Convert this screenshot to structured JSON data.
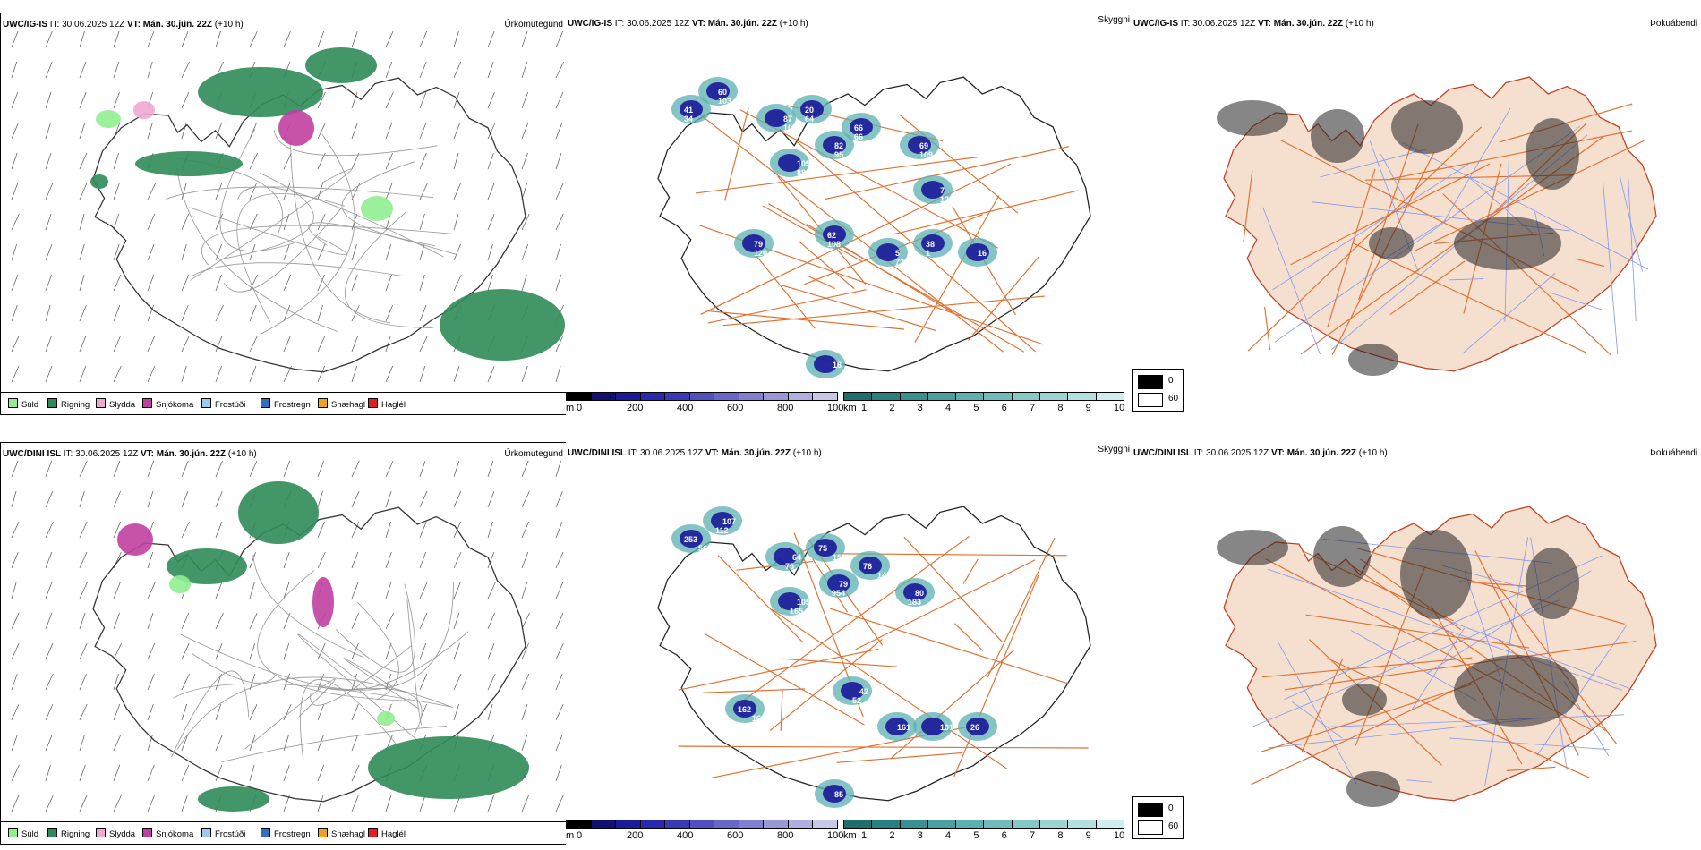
{
  "rows": [
    {
      "model": "UWC/IG-IS",
      "it_label": "IT:",
      "it_value": "30.06.2025 12Z",
      "vt_label": "VT:",
      "vt_value": "Mán. 30.jún. 22Z",
      "lead": "(+10 h)",
      "panels": [
        "Úrkomutegund",
        "Skyggni",
        "Þokuábendi"
      ]
    },
    {
      "model": "UWC/DINI ISL",
      "it_label": "IT:",
      "it_value": "30.06.2025 12Z",
      "vt_label": "VT:",
      "vt_value": "Mán. 30.jún. 22Z",
      "lead": "(+10 h)",
      "panels": [
        "Úrkomutegund",
        "Skyggni",
        "Þokuábendi"
      ]
    }
  ],
  "precip_legend": [
    {
      "label": "Súld",
      "color": "#90ee90"
    },
    {
      "label": "Rigning",
      "color": "#2e8b57"
    },
    {
      "label": "Slydda",
      "color": "#f0a8d0"
    },
    {
      "label": "Snjókoma",
      "color": "#c040a0"
    },
    {
      "label": "Frostúði",
      "color": "#9ccaf0"
    },
    {
      "label": "Frostregn",
      "color": "#3070c0"
    },
    {
      "label": "Snæhagl",
      "color": "#f0a020"
    },
    {
      "label": "Haglél",
      "color": "#e02020"
    }
  ],
  "visibility_legend_m": {
    "unit": "m",
    "ticks": [
      "0",
      "200",
      "400",
      "600",
      "800",
      "1000"
    ],
    "colors": [
      "#000000",
      "#101070",
      "#1a1a9a",
      "#2828b0",
      "#3a3ab8",
      "#5050c0",
      "#6868c8",
      "#8080d0",
      "#9898d8",
      "#b0b0e0",
      "#c8c8e8"
    ]
  },
  "visibility_legend_km": {
    "unit": "km",
    "ticks": [
      "1",
      "2",
      "3",
      "4",
      "5",
      "6",
      "7",
      "8",
      "9",
      "10"
    ],
    "colors": [
      "#1e6e6e",
      "#2a8080",
      "#3a9090",
      "#4aa0a0",
      "#5cb0b0",
      "#70bcbc",
      "#86c8c8",
      "#9cd4d4",
      "#b4e0e0",
      "#d0ecec"
    ]
  },
  "fog_legend": {
    "items": [
      {
        "value": "0",
        "color": "#000000"
      },
      {
        "value": "60",
        "color": "#ffffff"
      }
    ]
  },
  "visibility_labels_top": [
    "41",
    "60",
    "87",
    "20",
    "82",
    "105",
    "66",
    "69",
    "7",
    "62",
    "79",
    "5",
    "38",
    "16",
    "18",
    "34",
    "103",
    "107",
    "64",
    "95",
    "88",
    "66",
    "109",
    "129",
    "108",
    "120",
    "72",
    "1"
  ],
  "visibility_labels_bottom": [
    "253",
    "107",
    "64",
    "75",
    "79",
    "105",
    "76",
    "80",
    "42",
    "162",
    "161",
    "101",
    "26",
    "85",
    "56",
    "112",
    "75",
    "156",
    "954",
    "165",
    "144",
    "183",
    "52",
    "160"
  ],
  "colors": {
    "rain": "#2e8b57",
    "drizzle": "#90ee90",
    "snow": "#c040a0",
    "sleet": "#f0a8d0",
    "vis_low": "#1a1a9a",
    "vis_km": "#5cb0b0",
    "land": "#f5e0d0",
    "roads": "#e07030",
    "rivers": "#8899ee"
  }
}
